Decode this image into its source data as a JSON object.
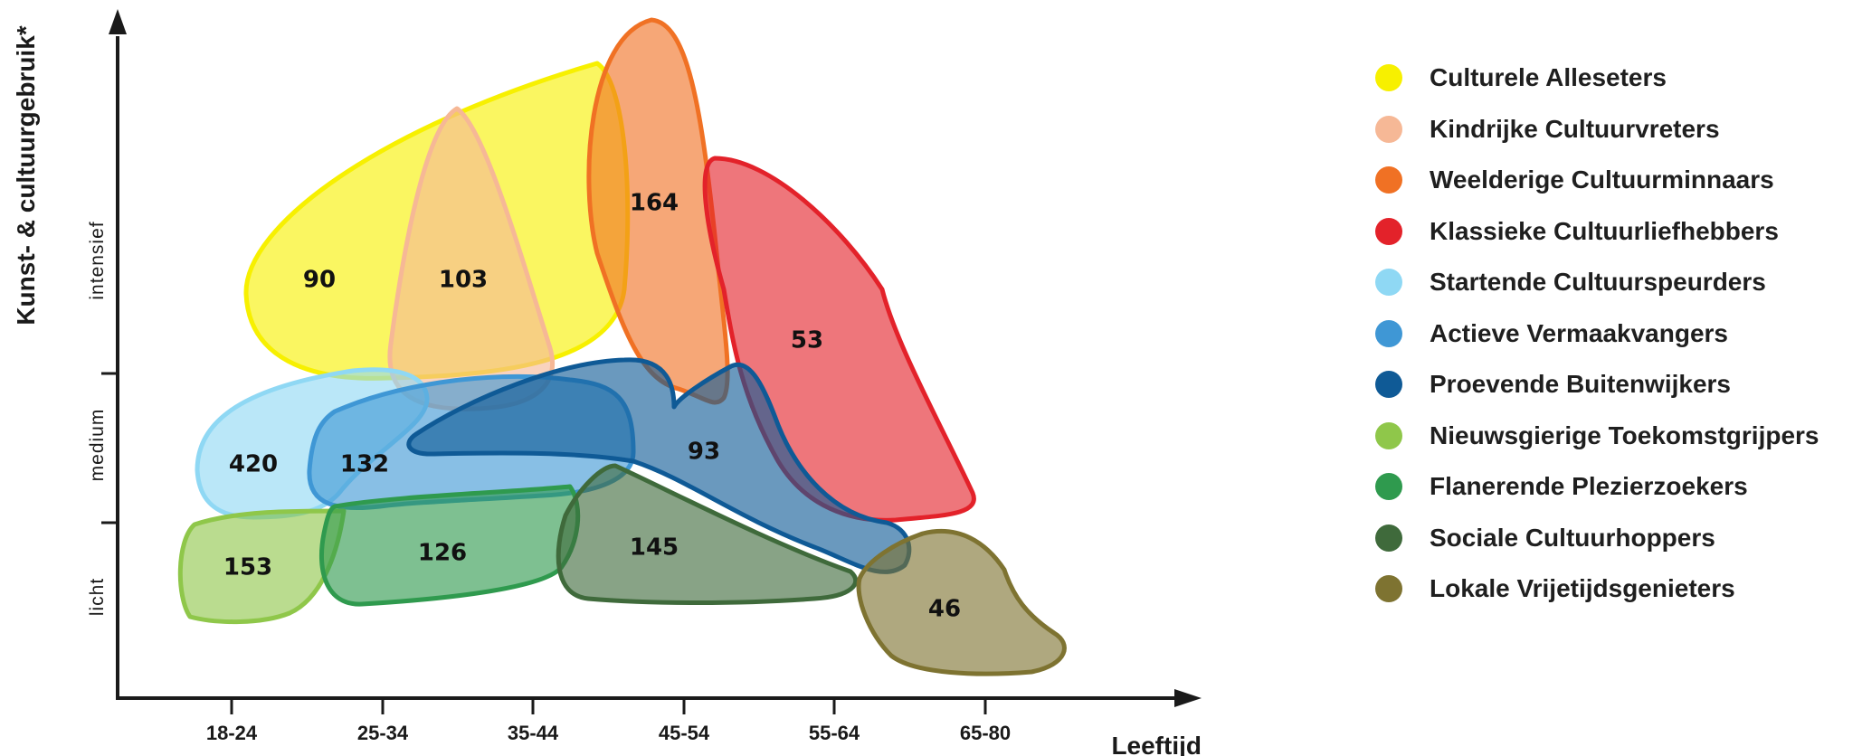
{
  "axes": {
    "y_title": "Kunst- & cultuurgebruik*",
    "x_title": "Leeftijd",
    "x_ticks": [
      "18-24",
      "25-34",
      "35-44",
      "45-54",
      "55-64",
      "65-80"
    ],
    "y_bands": [
      "licht",
      "medium",
      "intensief"
    ]
  },
  "segments": [
    {
      "name": "Culturele Alleseters",
      "value": "90",
      "color": "#f7f000"
    },
    {
      "name": "Kindrijke Cultuurvreters",
      "value": "103",
      "color": "#f6b896"
    },
    {
      "name": "Weelderige Cultuurminnaars",
      "value": "164",
      "color": "#f07124"
    },
    {
      "name": "Klassieke Cultuurliefhebbers",
      "value": "53",
      "color": "#e3222a"
    },
    {
      "name": "Startende Cultuurspeurders",
      "value": "420",
      "color": "#8fd8f4"
    },
    {
      "name": "Actieve Vermaakvangers",
      "value": "132",
      "color": "#3f97d5"
    },
    {
      "name": "Proevende Buitenwijkers",
      "value": "93",
      "color": "#0f5a96"
    },
    {
      "name": "Nieuwsgierige Toekomstgrijpers",
      "value": "153",
      "color": "#8fc74a"
    },
    {
      "name": "Flanerende Plezierzoekers",
      "value": "126",
      "color": "#2f9a4e"
    },
    {
      "name": "Sociale Cultuurhoppers",
      "value": "145",
      "color": "#3f6a3b"
    },
    {
      "name": "Lokale Vrijetijdsgenieters",
      "value": "46",
      "color": "#7e7331"
    }
  ]
}
